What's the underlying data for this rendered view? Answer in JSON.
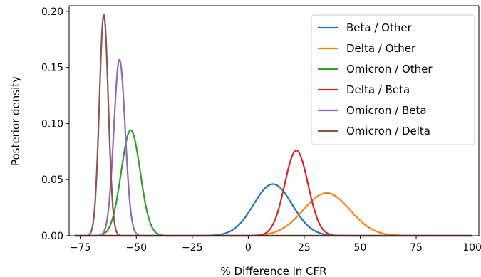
{
  "chart_data": {
    "type": "line",
    "xlabel": "% Difference in CFR",
    "ylabel": "Posterior density",
    "xlim": [
      -80,
      103
    ],
    "ylim": [
      0,
      0.205
    ],
    "xticks": [
      -75,
      -50,
      -25,
      0,
      25,
      50,
      75,
      100
    ],
    "xtick_labels": [
      "−75",
      "−50",
      "−25",
      "0",
      "25",
      "50",
      "75",
      "100"
    ],
    "yticks": [
      0,
      0.05,
      0.1,
      0.15,
      0.2
    ],
    "ytick_labels": [
      "0.00",
      "0.05",
      "0.10",
      "0.15",
      "0.20"
    ],
    "grid": false,
    "legend_position": "top-right",
    "series": [
      {
        "name": "Beta / Other",
        "color": "#1f77b4",
        "mean": 11,
        "sd": 8.6,
        "peak": 0.046
      },
      {
        "name": "Delta / Other",
        "color": "#ff7f0e",
        "mean": 35,
        "sd": 10.4,
        "peak": 0.038
      },
      {
        "name": "Omicron / Other",
        "color": "#2ca02c",
        "mean": -52.5,
        "sd": 4.25,
        "peak": 0.094
      },
      {
        "name": "Delta / Beta",
        "color": "#d62728",
        "mean": 21.5,
        "sd": 5.2,
        "peak": 0.076
      },
      {
        "name": "Omicron / Beta",
        "color": "#9467bd",
        "mean": -57.5,
        "sd": 2.53,
        "peak": 0.157
      },
      {
        "name": "Omicron / Delta",
        "color": "#8c564b",
        "mean": -64.5,
        "sd": 2.0,
        "peak": 0.197
      }
    ]
  }
}
